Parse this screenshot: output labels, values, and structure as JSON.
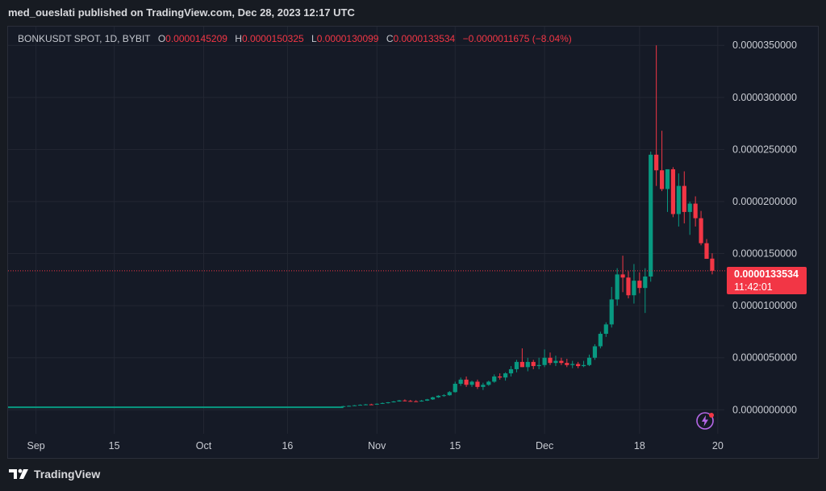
{
  "header": {
    "published": "med_oueslati published on TradingView.com, Dec 28, 2023 12:17 UTC"
  },
  "legend": {
    "symbol": "BONKUSDT SPOT, 1D, BYBIT",
    "o_label": "O",
    "o": "0.0000145209",
    "h_label": "H",
    "h": "0.0000150325",
    "l_label": "L",
    "l": "0.0000130099",
    "c_label": "C",
    "c": "0.0000133534",
    "change": "−0.0000011675 (−8.04%)"
  },
  "price_tag": {
    "price": "0.0000133534",
    "countdown": "11:42:01"
  },
  "footer": {
    "brand": "TradingView"
  },
  "colors": {
    "up": "#089981",
    "down": "#f23645",
    "background": "#151a26",
    "grid": "#232733"
  },
  "icons": {
    "logo": "tradingview-logo-icon",
    "bolt": "lightning-icon"
  },
  "chart_data": {
    "type": "candlestick",
    "symbol": "BONKUSDT SPOT",
    "timeframe": "1D",
    "exchange": "BYBIT",
    "y_ticks": [
      {
        "value": 3.5e-05,
        "label": "0.0000350000"
      },
      {
        "value": 3e-05,
        "label": "0.0000300000"
      },
      {
        "value": 2.5e-05,
        "label": "0.0000250000"
      },
      {
        "value": 2e-05,
        "label": "0.0000200000"
      },
      {
        "value": 1.5e-05,
        "label": "0.0000150000"
      },
      {
        "value": 1e-05,
        "label": "0.0000100000"
      },
      {
        "value": 5e-06,
        "label": "0.0000050000"
      },
      {
        "value": 0.0,
        "label": "0.0000000000"
      }
    ],
    "ylim": [
      -2.3e-06,
      3.68e-05
    ],
    "x_start": "2023-08-27",
    "x_end": "2023-12-30",
    "x_ticks": [
      {
        "date": "2023-09-01",
        "label": "Sep"
      },
      {
        "date": "2023-09-15",
        "label": "15"
      },
      {
        "date": "2023-10-01",
        "label": "Oct"
      },
      {
        "date": "2023-10-16",
        "label": "16"
      },
      {
        "date": "2023-11-01",
        "label": "Nov"
      },
      {
        "date": "2023-11-15",
        "label": "15"
      },
      {
        "date": "2023-12-01",
        "label": "Dec"
      },
      {
        "date": "2023-12-18",
        "label": "18"
      },
      {
        "date": "2024-01-01",
        "label": "20"
      }
    ],
    "last_price": 1.33534e-05,
    "candles": [
      {
        "d": "2023-10-26",
        "o": 3e-07,
        "h": 3.8e-07,
        "l": 2.8e-07,
        "c": 3.5e-07
      },
      {
        "d": "2023-10-27",
        "o": 3.5e-07,
        "h": 4.2e-07,
        "l": 3.2e-07,
        "c": 3.8e-07
      },
      {
        "d": "2023-10-28",
        "o": 3.8e-07,
        "h": 4.6e-07,
        "l": 3.6e-07,
        "c": 4.3e-07
      },
      {
        "d": "2023-10-29",
        "o": 4.3e-07,
        "h": 5.2e-07,
        "l": 4.1e-07,
        "c": 4.8e-07
      },
      {
        "d": "2023-10-30",
        "o": 4.8e-07,
        "h": 5.6e-07,
        "l": 4.4e-07,
        "c": 5.2e-07
      },
      {
        "d": "2023-10-31",
        "o": 5.2e-07,
        "h": 5.8e-07,
        "l": 4.7e-07,
        "c": 5e-07
      },
      {
        "d": "2023-11-01",
        "o": 5e-07,
        "h": 6.2e-07,
        "l": 4.8e-07,
        "c": 5.8e-07
      },
      {
        "d": "2023-11-02",
        "o": 5.8e-07,
        "h": 7e-07,
        "l": 5.6e-07,
        "c": 6.5e-07
      },
      {
        "d": "2023-11-03",
        "o": 6.5e-07,
        "h": 7.5e-07,
        "l": 6e-07,
        "c": 7.2e-07
      },
      {
        "d": "2023-11-04",
        "o": 7.2e-07,
        "h": 8.5e-07,
        "l": 7e-07,
        "c": 8e-07
      },
      {
        "d": "2023-11-05",
        "o": 8e-07,
        "h": 9.5e-07,
        "l": 7.8e-07,
        "c": 9e-07
      },
      {
        "d": "2023-11-06",
        "o": 9e-07,
        "h": 1e-06,
        "l": 8e-07,
        "c": 8.5e-07
      },
      {
        "d": "2023-11-07",
        "o": 8.5e-07,
        "h": 9.5e-07,
        "l": 7.8e-07,
        "c": 8.2e-07
      },
      {
        "d": "2023-11-08",
        "o": 8.2e-07,
        "h": 9.2e-07,
        "l": 7.5e-07,
        "c": 8e-07
      },
      {
        "d": "2023-11-09",
        "o": 8e-07,
        "h": 9.5e-07,
        "l": 7.8e-07,
        "c": 8.8e-07
      },
      {
        "d": "2023-11-10",
        "o": 8.8e-07,
        "h": 1.05e-06,
        "l": 8.5e-07,
        "c": 1e-06
      },
      {
        "d": "2023-11-11",
        "o": 1e-06,
        "h": 1.25e-06,
        "l": 9.5e-07,
        "c": 1.2e-06
      },
      {
        "d": "2023-11-12",
        "o": 1.2e-06,
        "h": 1.4e-06,
        "l": 1.15e-06,
        "c": 1.35e-06
      },
      {
        "d": "2023-11-13",
        "o": 1.35e-06,
        "h": 1.5e-06,
        "l": 1.25e-06,
        "c": 1.4e-06
      },
      {
        "d": "2023-11-14",
        "o": 1.4e-06,
        "h": 1.8e-06,
        "l": 1.35e-06,
        "c": 1.7e-06
      },
      {
        "d": "2023-11-15",
        "o": 1.7e-06,
        "h": 2.7e-06,
        "l": 1.65e-06,
        "c": 2.5e-06
      },
      {
        "d": "2023-11-16",
        "o": 2.5e-06,
        "h": 3.1e-06,
        "l": 2.3e-06,
        "c": 2.9e-06
      },
      {
        "d": "2023-11-17",
        "o": 2.9e-06,
        "h": 3.2e-06,
        "l": 2.2e-06,
        "c": 2.4e-06
      },
      {
        "d": "2023-11-18",
        "o": 2.4e-06,
        "h": 2.8e-06,
        "l": 2.2e-06,
        "c": 2.7e-06
      },
      {
        "d": "2023-11-19",
        "o": 2.7e-06,
        "h": 2.9e-06,
        "l": 2e-06,
        "c": 2.2e-06
      },
      {
        "d": "2023-11-20",
        "o": 2.2e-06,
        "h": 2.6e-06,
        "l": 1.9e-06,
        "c": 2.4e-06
      },
      {
        "d": "2023-11-21",
        "o": 2.4e-06,
        "h": 2.8e-06,
        "l": 2.3e-06,
        "c": 2.7e-06
      },
      {
        "d": "2023-11-22",
        "o": 2.7e-06,
        "h": 3.4e-06,
        "l": 2.6e-06,
        "c": 3.2e-06
      },
      {
        "d": "2023-11-23",
        "o": 3.2e-06,
        "h": 3.5e-06,
        "l": 2.9e-06,
        "c": 3.1e-06
      },
      {
        "d": "2023-11-24",
        "o": 3.1e-06,
        "h": 3.6e-06,
        "l": 2.8e-06,
        "c": 3.5e-06
      },
      {
        "d": "2023-11-25",
        "o": 3.5e-06,
        "h": 4.2e-06,
        "l": 3.2e-06,
        "c": 3.9e-06
      },
      {
        "d": "2023-11-26",
        "o": 3.9e-06,
        "h": 4.8e-06,
        "l": 3.6e-06,
        "c": 4.6e-06
      },
      {
        "d": "2023-11-27",
        "o": 4.6e-06,
        "h": 5.9e-06,
        "l": 4.1e-06,
        "c": 4.1e-06
      },
      {
        "d": "2023-11-28",
        "o": 4.1e-06,
        "h": 5e-06,
        "l": 3.7e-06,
        "c": 4.6e-06
      },
      {
        "d": "2023-11-29",
        "o": 4.6e-06,
        "h": 4.8e-06,
        "l": 3.9e-06,
        "c": 4.2e-06
      },
      {
        "d": "2023-11-30",
        "o": 4.2e-06,
        "h": 5e-06,
        "l": 3.9e-06,
        "c": 4.3e-06
      },
      {
        "d": "2023-12-01",
        "o": 4.3e-06,
        "h": 5.8e-06,
        "l": 4.1e-06,
        "c": 5e-06
      },
      {
        "d": "2023-12-02",
        "o": 5e-06,
        "h": 5.5e-06,
        "l": 4.3e-06,
        "c": 4.5e-06
      },
      {
        "d": "2023-12-03",
        "o": 4.5e-06,
        "h": 5.2e-06,
        "l": 4.2e-06,
        "c": 4.7e-06
      },
      {
        "d": "2023-12-04",
        "o": 4.7e-06,
        "h": 5e-06,
        "l": 4.3e-06,
        "c": 4.5e-06
      },
      {
        "d": "2023-12-05",
        "o": 4.5e-06,
        "h": 4.9e-06,
        "l": 4.1e-06,
        "c": 4.3e-06
      },
      {
        "d": "2023-12-06",
        "o": 4.3e-06,
        "h": 4.7e-06,
        "l": 4e-06,
        "c": 4.4e-06
      },
      {
        "d": "2023-12-07",
        "o": 4.4e-06,
        "h": 4.6e-06,
        "l": 4e-06,
        "c": 4.2e-06
      },
      {
        "d": "2023-12-08",
        "o": 4.2e-06,
        "h": 4.7e-06,
        "l": 4.1e-06,
        "c": 4.3e-06
      },
      {
        "d": "2023-12-09",
        "o": 4.3e-06,
        "h": 5.3e-06,
        "l": 4.2e-06,
        "c": 5e-06
      },
      {
        "d": "2023-12-10",
        "o": 5e-06,
        "h": 6.3e-06,
        "l": 4.8e-06,
        "c": 6.1e-06
      },
      {
        "d": "2023-12-11",
        "o": 6.1e-06,
        "h": 7.5e-06,
        "l": 5.9e-06,
        "c": 7.3e-06
      },
      {
        "d": "2023-12-12",
        "o": 7.3e-06,
        "h": 8.4e-06,
        "l": 7e-06,
        "c": 8.2e-06
      },
      {
        "d": "2023-12-13",
        "o": 8.2e-06,
        "h": 1.18e-05,
        "l": 7.9e-06,
        "c": 1.06e-05
      },
      {
        "d": "2023-12-14",
        "o": 1.06e-05,
        "h": 1.36e-05,
        "l": 1e-05,
        "c": 1.3e-05
      },
      {
        "d": "2023-12-15",
        "o": 1.3e-05,
        "h": 1.48e-05,
        "l": 1.13e-05,
        "c": 1.27e-05
      },
      {
        "d": "2023-12-16",
        "o": 1.27e-05,
        "h": 1.33e-05,
        "l": 1.07e-05,
        "c": 1.1e-05
      },
      {
        "d": "2023-12-17",
        "o": 1.1e-05,
        "h": 1.4e-05,
        "l": 1.02e-05,
        "c": 1.24e-05
      },
      {
        "d": "2023-12-18",
        "o": 1.24e-05,
        "h": 1.32e-05,
        "l": 1.12e-05,
        "c": 1.17e-05
      },
      {
        "d": "2023-12-19",
        "o": 1.17e-05,
        "h": 1.36e-05,
        "l": 9.3e-06,
        "c": 1.28e-05
      },
      {
        "d": "2023-12-20",
        "o": 1.28e-05,
        "h": 2.48e-05,
        "l": 1.23e-05,
        "c": 2.45e-05
      },
      {
        "d": "2023-12-21",
        "o": 2.45e-05,
        "h": 3.5e-05,
        "l": 2.15e-05,
        "c": 2.3e-05
      },
      {
        "d": "2023-12-22",
        "o": 2.3e-05,
        "h": 2.68e-05,
        "l": 2.1e-05,
        "c": 2.12e-05
      },
      {
        "d": "2023-12-23",
        "o": 2.12e-05,
        "h": 2.31e-05,
        "l": 1.9e-05,
        "c": 2.31e-05
      },
      {
        "d": "2023-12-24",
        "o": 2.31e-05,
        "h": 2.33e-05,
        "l": 1.85e-05,
        "c": 1.88e-05
      },
      {
        "d": "2023-12-25",
        "o": 1.88e-05,
        "h": 2.27e-05,
        "l": 1.76e-05,
        "c": 2.15e-05
      },
      {
        "d": "2023-12-26",
        "o": 2.15e-05,
        "h": 2.29e-05,
        "l": 1.79e-05,
        "c": 1.9e-05
      },
      {
        "d": "2023-12-27",
        "o": 1.9e-05,
        "h": 2e-05,
        "l": 1.68e-05,
        "c": 1.98e-05
      },
      {
        "d": "2023-12-28",
        "o": 1.98e-05,
        "h": 2.05e-05,
        "l": 1.76e-05,
        "c": 1.84e-05
      },
      {
        "d": "2023-12-29",
        "o": 1.84e-05,
        "h": 1.91e-05,
        "l": 1.58e-05,
        "c": 1.6e-05
      },
      {
        "d": "2023-12-30",
        "o": 1.6e-05,
        "h": 1.64e-05,
        "l": 1.45e-05,
        "c": 1.45e-05
      },
      {
        "d": "2023-12-31",
        "o": 1.45209e-05,
        "h": 1.50325e-05,
        "l": 1.30099e-05,
        "c": 1.33534e-05
      }
    ],
    "flat_segment": {
      "from": "2023-08-27",
      "to": "2023-10-26",
      "value": 2.5e-07
    }
  }
}
